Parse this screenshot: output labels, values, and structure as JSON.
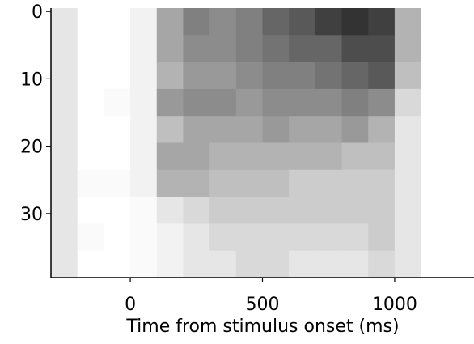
{
  "chart_data": {
    "type": "heatmap",
    "xlabel": "Time from stimulus onset (ms)",
    "xbins": [
      -300,
      -200,
      -100,
      0,
      100,
      200,
      300,
      400,
      500,
      600,
      700,
      800,
      900,
      1000,
      1100,
      1200,
      1300
    ],
    "ybins": [
      -0.5,
      3.5,
      7.5,
      11.5,
      15.5,
      19.5,
      23.5,
      27.5,
      31.5,
      35.5,
      39.5
    ],
    "values": [
      [
        0.1,
        0,
        0,
        0.05,
        0.35,
        0.5,
        0.45,
        0.5,
        0.6,
        0.65,
        0.75,
        0.8,
        0.75,
        0.3,
        0,
        0
      ],
      [
        0.1,
        0,
        0,
        0.05,
        0.35,
        0.45,
        0.45,
        0.5,
        0.55,
        0.6,
        0.6,
        0.7,
        0.7,
        0.3,
        0,
        0
      ],
      [
        0.1,
        0,
        0,
        0.05,
        0.3,
        0.4,
        0.4,
        0.45,
        0.5,
        0.5,
        0.55,
        0.6,
        0.65,
        0.25,
        0,
        0
      ],
      [
        0.1,
        0,
        0.02,
        0.05,
        0.4,
        0.45,
        0.45,
        0.4,
        0.45,
        0.45,
        0.45,
        0.5,
        0.45,
        0.15,
        0,
        0
      ],
      [
        0.1,
        0,
        0,
        0.05,
        0.25,
        0.35,
        0.35,
        0.35,
        0.4,
        0.35,
        0.35,
        0.4,
        0.3,
        0.1,
        0,
        0
      ],
      [
        0.1,
        0,
        0,
        0.05,
        0.35,
        0.35,
        0.3,
        0.3,
        0.3,
        0.3,
        0.3,
        0.25,
        0.25,
        0.1,
        0,
        0
      ],
      [
        0.1,
        0.02,
        0.02,
        0.05,
        0.3,
        0.3,
        0.25,
        0.25,
        0.25,
        0.2,
        0.2,
        0.2,
        0.2,
        0.1,
        0,
        0
      ],
      [
        0.1,
        0,
        0,
        0.02,
        0.1,
        0.15,
        0.2,
        0.2,
        0.2,
        0.2,
        0.2,
        0.2,
        0.2,
        0.1,
        0,
        0
      ],
      [
        0.1,
        0.02,
        0,
        0.02,
        0.05,
        0.1,
        0.15,
        0.15,
        0.15,
        0.15,
        0.15,
        0.15,
        0.2,
        0.1,
        0,
        0
      ],
      [
        0.1,
        0,
        0,
        0.02,
        0.05,
        0.1,
        0.1,
        0.15,
        0.15,
        0.1,
        0.1,
        0.1,
        0.15,
        0.1,
        0,
        0
      ]
    ],
    "colormap": [
      "#ffffff",
      "#000000"
    ],
    "vlim": [
      0,
      1
    ],
    "xlim": [
      -300,
      1300
    ],
    "xticks": [
      0,
      500,
      1000
    ],
    "ylim": [
      39.5,
      -0.5
    ],
    "yticks": [
      0,
      10,
      20,
      30
    ]
  }
}
